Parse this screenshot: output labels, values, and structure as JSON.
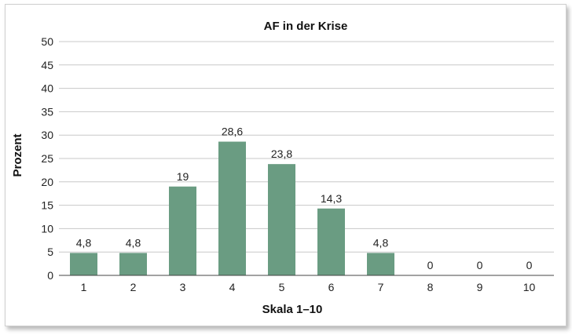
{
  "chart_data": {
    "type": "bar",
    "title": "AF in der Krise",
    "xlabel": "Skala 1–10",
    "ylabel": "Prozent",
    "categories": [
      "1",
      "2",
      "3",
      "4",
      "5",
      "6",
      "7",
      "8",
      "9",
      "10"
    ],
    "values": [
      4.8,
      4.8,
      19,
      28.6,
      23.8,
      14.3,
      4.8,
      0,
      0,
      0
    ],
    "value_labels": [
      "4,8",
      "4,8",
      "19",
      "28,6",
      "23,8",
      "14,3",
      "4,8",
      "0",
      "0",
      "0"
    ],
    "yticks": [
      "0",
      "5",
      "10",
      "15",
      "20",
      "25",
      "30",
      "35",
      "40",
      "45",
      "50"
    ],
    "ylim": [
      0,
      50
    ],
    "grid": true,
    "legend": "none",
    "bar_color": "#6a9c82",
    "grid_color": "#c8c8c8"
  }
}
